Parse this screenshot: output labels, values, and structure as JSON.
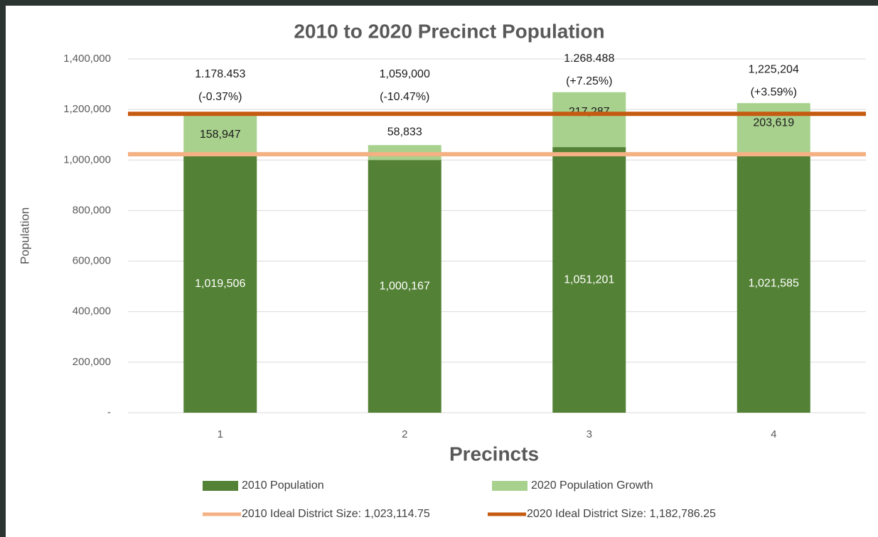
{
  "chart_data": {
    "type": "bar",
    "stacked": true,
    "title": "2010 to 2020 Precinct Population",
    "x_label": "Precincts",
    "y_label": "Population",
    "categories": [
      "1",
      "2",
      "3",
      "4"
    ],
    "series": [
      {
        "name": "2010 Population",
        "color": "#538135",
        "values": [
          1019506,
          1000167,
          1051201,
          1021585
        ],
        "value_labels": [
          "1,019,506",
          "1,000,167",
          "1,051,201",
          "1,021,585"
        ]
      },
      {
        "name": "2020 Population Growth",
        "color": "#a9d18e",
        "values": [
          158947,
          58833,
          217287,
          203619
        ],
        "value_labels": [
          "158,947",
          "58,833",
          "217,287",
          "203,619"
        ]
      }
    ],
    "reference_lines": [
      {
        "name": "2010 Ideal District Size: 1,023,114.75",
        "value": 1023114.75,
        "color": "#f4b183"
      },
      {
        "name": "2020 Ideal District Size: 1,182,786.25",
        "value": 1182786.25,
        "color": "#c55a11"
      }
    ],
    "annotations": [
      {
        "total": "1.178.453",
        "change": "(-0.37%)"
      },
      {
        "total": "1,059,000",
        "change": "(-10.47%)"
      },
      {
        "total": "1.268.488",
        "change": "(+7.25%)"
      },
      {
        "total": "1,225,204",
        "change": "(+3.59%)"
      }
    ],
    "ylim": [
      0,
      1400000
    ],
    "yticks": [
      {
        "value": 0,
        "label": "-"
      },
      {
        "value": 200000,
        "label": "200,000"
      },
      {
        "value": 400000,
        "label": "400,000"
      },
      {
        "value": 600000,
        "label": "600,000"
      },
      {
        "value": 800000,
        "label": "800,000"
      },
      {
        "value": 1000000,
        "label": "1,000,000"
      },
      {
        "value": 1200000,
        "label": "1,200,000"
      },
      {
        "value": 1400000,
        "label": "1,400,000"
      }
    ],
    "grid": true
  }
}
